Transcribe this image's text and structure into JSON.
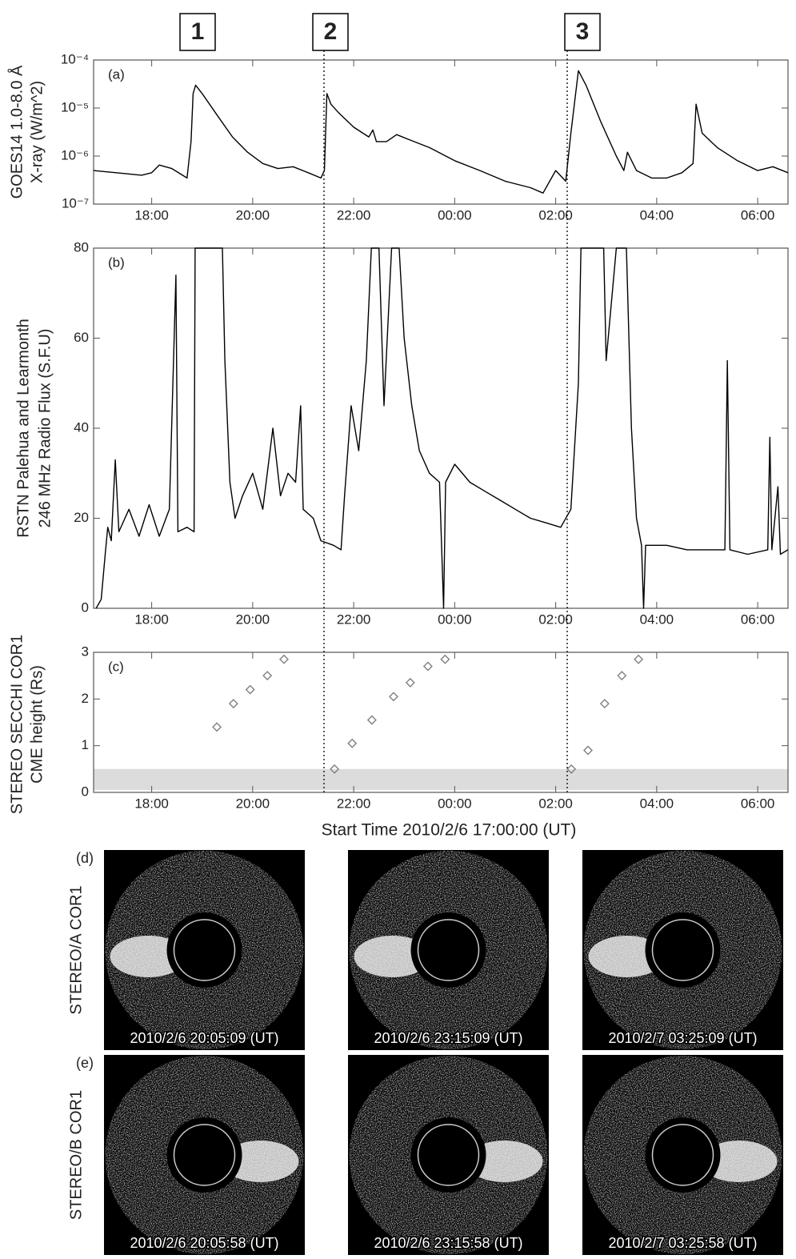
{
  "event_labels": [
    "1",
    "2",
    "3"
  ],
  "chart_data": [
    {
      "type": "line",
      "panel_label": "(a)",
      "ylabel": [
        "GOES14  1.0-8.0 Å",
        "X-ray  (W/m^2)"
      ],
      "color": "#000000",
      "log_scale": true,
      "ylim": [
        1e-07,
        0.0001
      ],
      "yticks": [
        {
          "value": 1e-07,
          "label": "10⁻⁷"
        },
        {
          "value": 1e-06,
          "label": "10⁻⁶"
        },
        {
          "value": 1e-05,
          "label": "10⁻⁵"
        },
        {
          "value": 0.0001,
          "label": "10⁻⁴"
        }
      ],
      "xlim": [
        -0.15,
        13.6
      ],
      "xticks": [
        {
          "value": 1,
          "label": "18:00"
        },
        {
          "value": 3,
          "label": "20:00"
        },
        {
          "value": 5,
          "label": "22:00"
        },
        {
          "value": 7,
          "label": "00:00"
        },
        {
          "value": 9,
          "label": "02:00"
        },
        {
          "value": 11,
          "label": "04:00"
        },
        {
          "value": 13,
          "label": "06:00"
        }
      ],
      "x": [
        -0.15,
        0.3,
        0.8,
        1.0,
        1.15,
        1.4,
        1.7,
        1.78,
        1.82,
        1.87,
        2.0,
        2.3,
        2.6,
        2.9,
        3.2,
        3.5,
        3.8,
        4.1,
        4.35,
        4.42,
        4.47,
        4.55,
        4.7,
        5.0,
        5.3,
        5.38,
        5.45,
        5.65,
        5.85,
        6.1,
        6.5,
        7.0,
        7.5,
        8.0,
        8.5,
        8.75,
        9.0,
        9.2,
        9.3,
        9.45,
        9.6,
        9.9,
        10.2,
        10.35,
        10.42,
        10.6,
        10.9,
        11.2,
        11.5,
        11.72,
        11.78,
        11.9,
        12.2,
        12.6,
        13.0,
        13.3,
        13.6
      ],
      "values": [
        5e-07,
        4.5e-07,
        4e-07,
        4.5e-07,
        6.5e-07,
        5.5e-07,
        3.5e-07,
        2e-06,
        2e-05,
        3e-05,
        2e-05,
        7e-06,
        2.5e-06,
        1.2e-06,
        7e-07,
        5.5e-07,
        6e-07,
        4.5e-07,
        3.5e-07,
        5e-07,
        2e-05,
        1.2e-05,
        8e-06,
        4e-06,
        2.5e-06,
        3.5e-06,
        2e-06,
        2e-06,
        2.8e-06,
        2.2e-06,
        1.5e-06,
        8e-07,
        5e-07,
        3e-07,
        2.2e-07,
        1.7e-07,
        5e-07,
        3e-07,
        3e-06,
        6e-05,
        3e-05,
        5e-06,
        1e-06,
        5e-07,
        1.2e-06,
        5e-07,
        3.5e-07,
        3.5e-07,
        4.5e-07,
        7e-07,
        1.2e-05,
        3e-06,
        1.5e-06,
        8e-07,
        5e-07,
        6e-07,
        4.5e-07
      ]
    },
    {
      "type": "line",
      "panel_label": "(b)",
      "ylabel": [
        "RSTN Palehua and Learmonth",
        "246 MHz Radio Flux (S.F.U)"
      ],
      "color": "#000000",
      "ylim": [
        0,
        80
      ],
      "yticks": [
        0,
        20,
        40,
        60,
        80
      ],
      "xlim": [
        -0.15,
        13.6
      ],
      "xticks": [
        {
          "value": 1,
          "label": "18:00"
        },
        {
          "value": 3,
          "label": "20:00"
        },
        {
          "value": 5,
          "label": "22:00"
        },
        {
          "value": 7,
          "label": "00:00"
        },
        {
          "value": 9,
          "label": "02:00"
        },
        {
          "value": 11,
          "label": "04:00"
        },
        {
          "value": 13,
          "label": "06:00"
        }
      ],
      "x": [
        -0.1,
        0.0,
        0.08,
        0.13,
        0.2,
        0.28,
        0.35,
        0.55,
        0.75,
        0.95,
        1.15,
        1.35,
        1.48,
        1.52,
        1.7,
        1.84,
        1.86,
        2.4,
        2.45,
        2.55,
        2.65,
        2.8,
        3.0,
        3.2,
        3.4,
        3.55,
        3.7,
        3.85,
        3.95,
        4.0,
        4.2,
        4.35,
        4.6,
        4.75,
        4.82,
        4.95,
        5.1,
        5.25,
        5.35,
        5.5,
        5.6,
        5.75,
        5.9,
        6.0,
        6.15,
        6.3,
        6.5,
        6.7,
        6.78,
        6.82,
        7.0,
        7.3,
        7.6,
        7.9,
        8.2,
        8.5,
        8.8,
        9.1,
        9.3,
        9.45,
        9.5,
        9.8,
        9.95,
        10.0,
        10.2,
        10.4,
        10.5,
        10.6,
        10.7,
        10.74,
        10.78,
        11.2,
        11.6,
        12.0,
        12.35,
        12.4,
        12.45,
        12.8,
        13.2,
        13.24,
        13.28,
        13.4,
        13.45,
        13.6
      ],
      "values": [
        0,
        2,
        12,
        18,
        15,
        33,
        17,
        22,
        16,
        23,
        16,
        22,
        74,
        17,
        18,
        17,
        80,
        80,
        55,
        28,
        20,
        25,
        30,
        22,
        40,
        25,
        30,
        28,
        45,
        22,
        20,
        15,
        14,
        13,
        25,
        45,
        35,
        55,
        80,
        80,
        45,
        80,
        80,
        60,
        45,
        35,
        30,
        28,
        0,
        28,
        32,
        28,
        26,
        24,
        22,
        20,
        19,
        18,
        22,
        50,
        80,
        80,
        80,
        55,
        80,
        80,
        40,
        20,
        14,
        0,
        14,
        14,
        13,
        13,
        13,
        55,
        13,
        12,
        13,
        38,
        13,
        27,
        12,
        13
      ]
    },
    {
      "type": "scatter",
      "panel_label": "(c)",
      "ylabel": [
        "STEREO SECCHI COR1",
        "CME height (Rs)"
      ],
      "color": "#808080",
      "xlabel": "Start Time 2010/2/6 17:00:00 (UT)",
      "ylim": [
        0,
        3
      ],
      "yticks": [
        0,
        1,
        2,
        3
      ],
      "shaded_range": [
        0.05,
        0.5
      ],
      "xlim": [
        -0.15,
        13.6
      ],
      "xticks": [
        {
          "value": 1,
          "label": "18:00"
        },
        {
          "value": 3,
          "label": "20:00"
        },
        {
          "value": 5,
          "label": "22:00"
        },
        {
          "value": 7,
          "label": "00:00"
        },
        {
          "value": 9,
          "label": "02:00"
        },
        {
          "value": 11,
          "label": "04:00"
        },
        {
          "value": 13,
          "label": "06:00"
        }
      ],
      "x": [
        2.29,
        2.62,
        2.95,
        3.29,
        3.62,
        4.62,
        4.97,
        5.36,
        5.79,
        6.12,
        6.47,
        6.81,
        9.31,
        9.64,
        9.97,
        10.31,
        10.64
      ],
      "values": [
        1.4,
        1.9,
        2.2,
        2.5,
        2.85,
        0.5,
        1.05,
        1.55,
        2.05,
        2.35,
        2.7,
        2.85,
        0.5,
        0.9,
        1.9,
        2.5,
        2.85
      ]
    }
  ],
  "images": [
    {
      "panel_label": "(d)",
      "label": "STEREO/A COR1",
      "timestamps": [
        "2010/2/6 20:05:09 (UT)",
        "2010/2/6 23:15:09 (UT)",
        "2010/2/7 03:25:09 (UT)"
      ]
    },
    {
      "panel_label": "(e)",
      "label": "STEREO/B COR1",
      "timestamps": [
        "2010/2/6 20:05:58 (UT)",
        "2010/2/6 23:15:58 (UT)",
        "2010/2/7 03:25:58 (UT)"
      ]
    }
  ]
}
